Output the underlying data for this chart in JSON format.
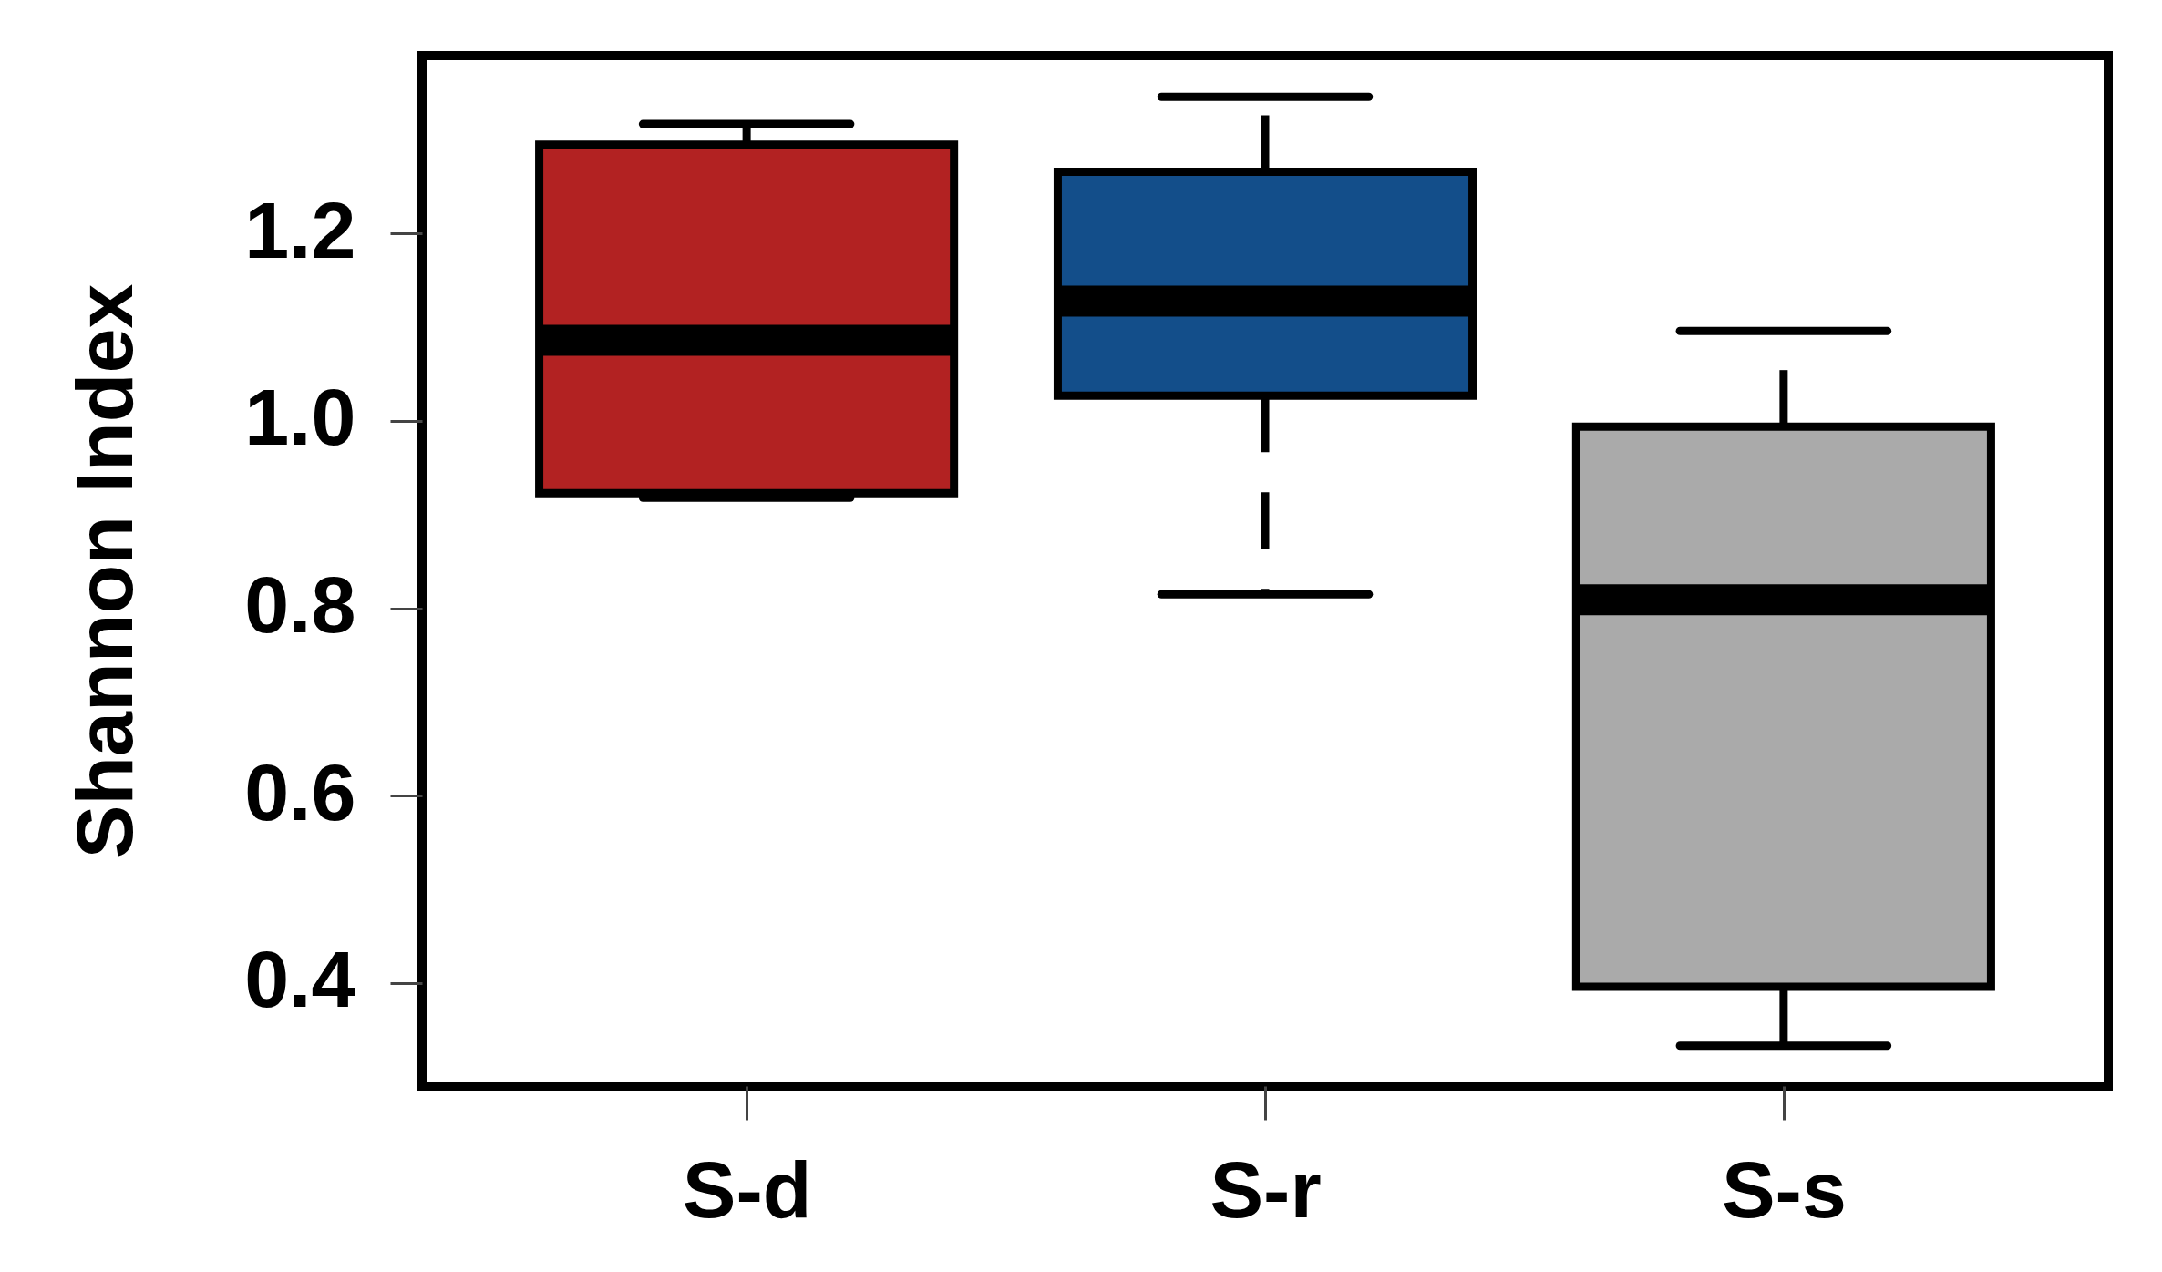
{
  "chart_data": {
    "type": "box",
    "ylabel": "Shannon Index",
    "categories": [
      "S-d",
      "S-r",
      "S-s"
    ],
    "colors": [
      "#b22222",
      "#134e8a",
      "#aaaaaa"
    ],
    "boxes": [
      {
        "low": 0.918,
        "q1": 0.923,
        "median": 1.086,
        "q3": 1.295,
        "high": 1.317
      },
      {
        "low": 0.815,
        "q1": 1.027,
        "median": 1.128,
        "q3": 1.266,
        "high": 1.346
      },
      {
        "low": 0.333,
        "q1": 0.396,
        "median": 0.809,
        "q3": 0.994,
        "high": 1.096
      }
    ],
    "ylim": [
      0.29,
      1.39
    ],
    "yticks": [
      0.4,
      0.6,
      0.8,
      {
        "value": 1.0,
        "label": "1.0"
      },
      1.2
    ],
    "line_style": "dashed"
  }
}
